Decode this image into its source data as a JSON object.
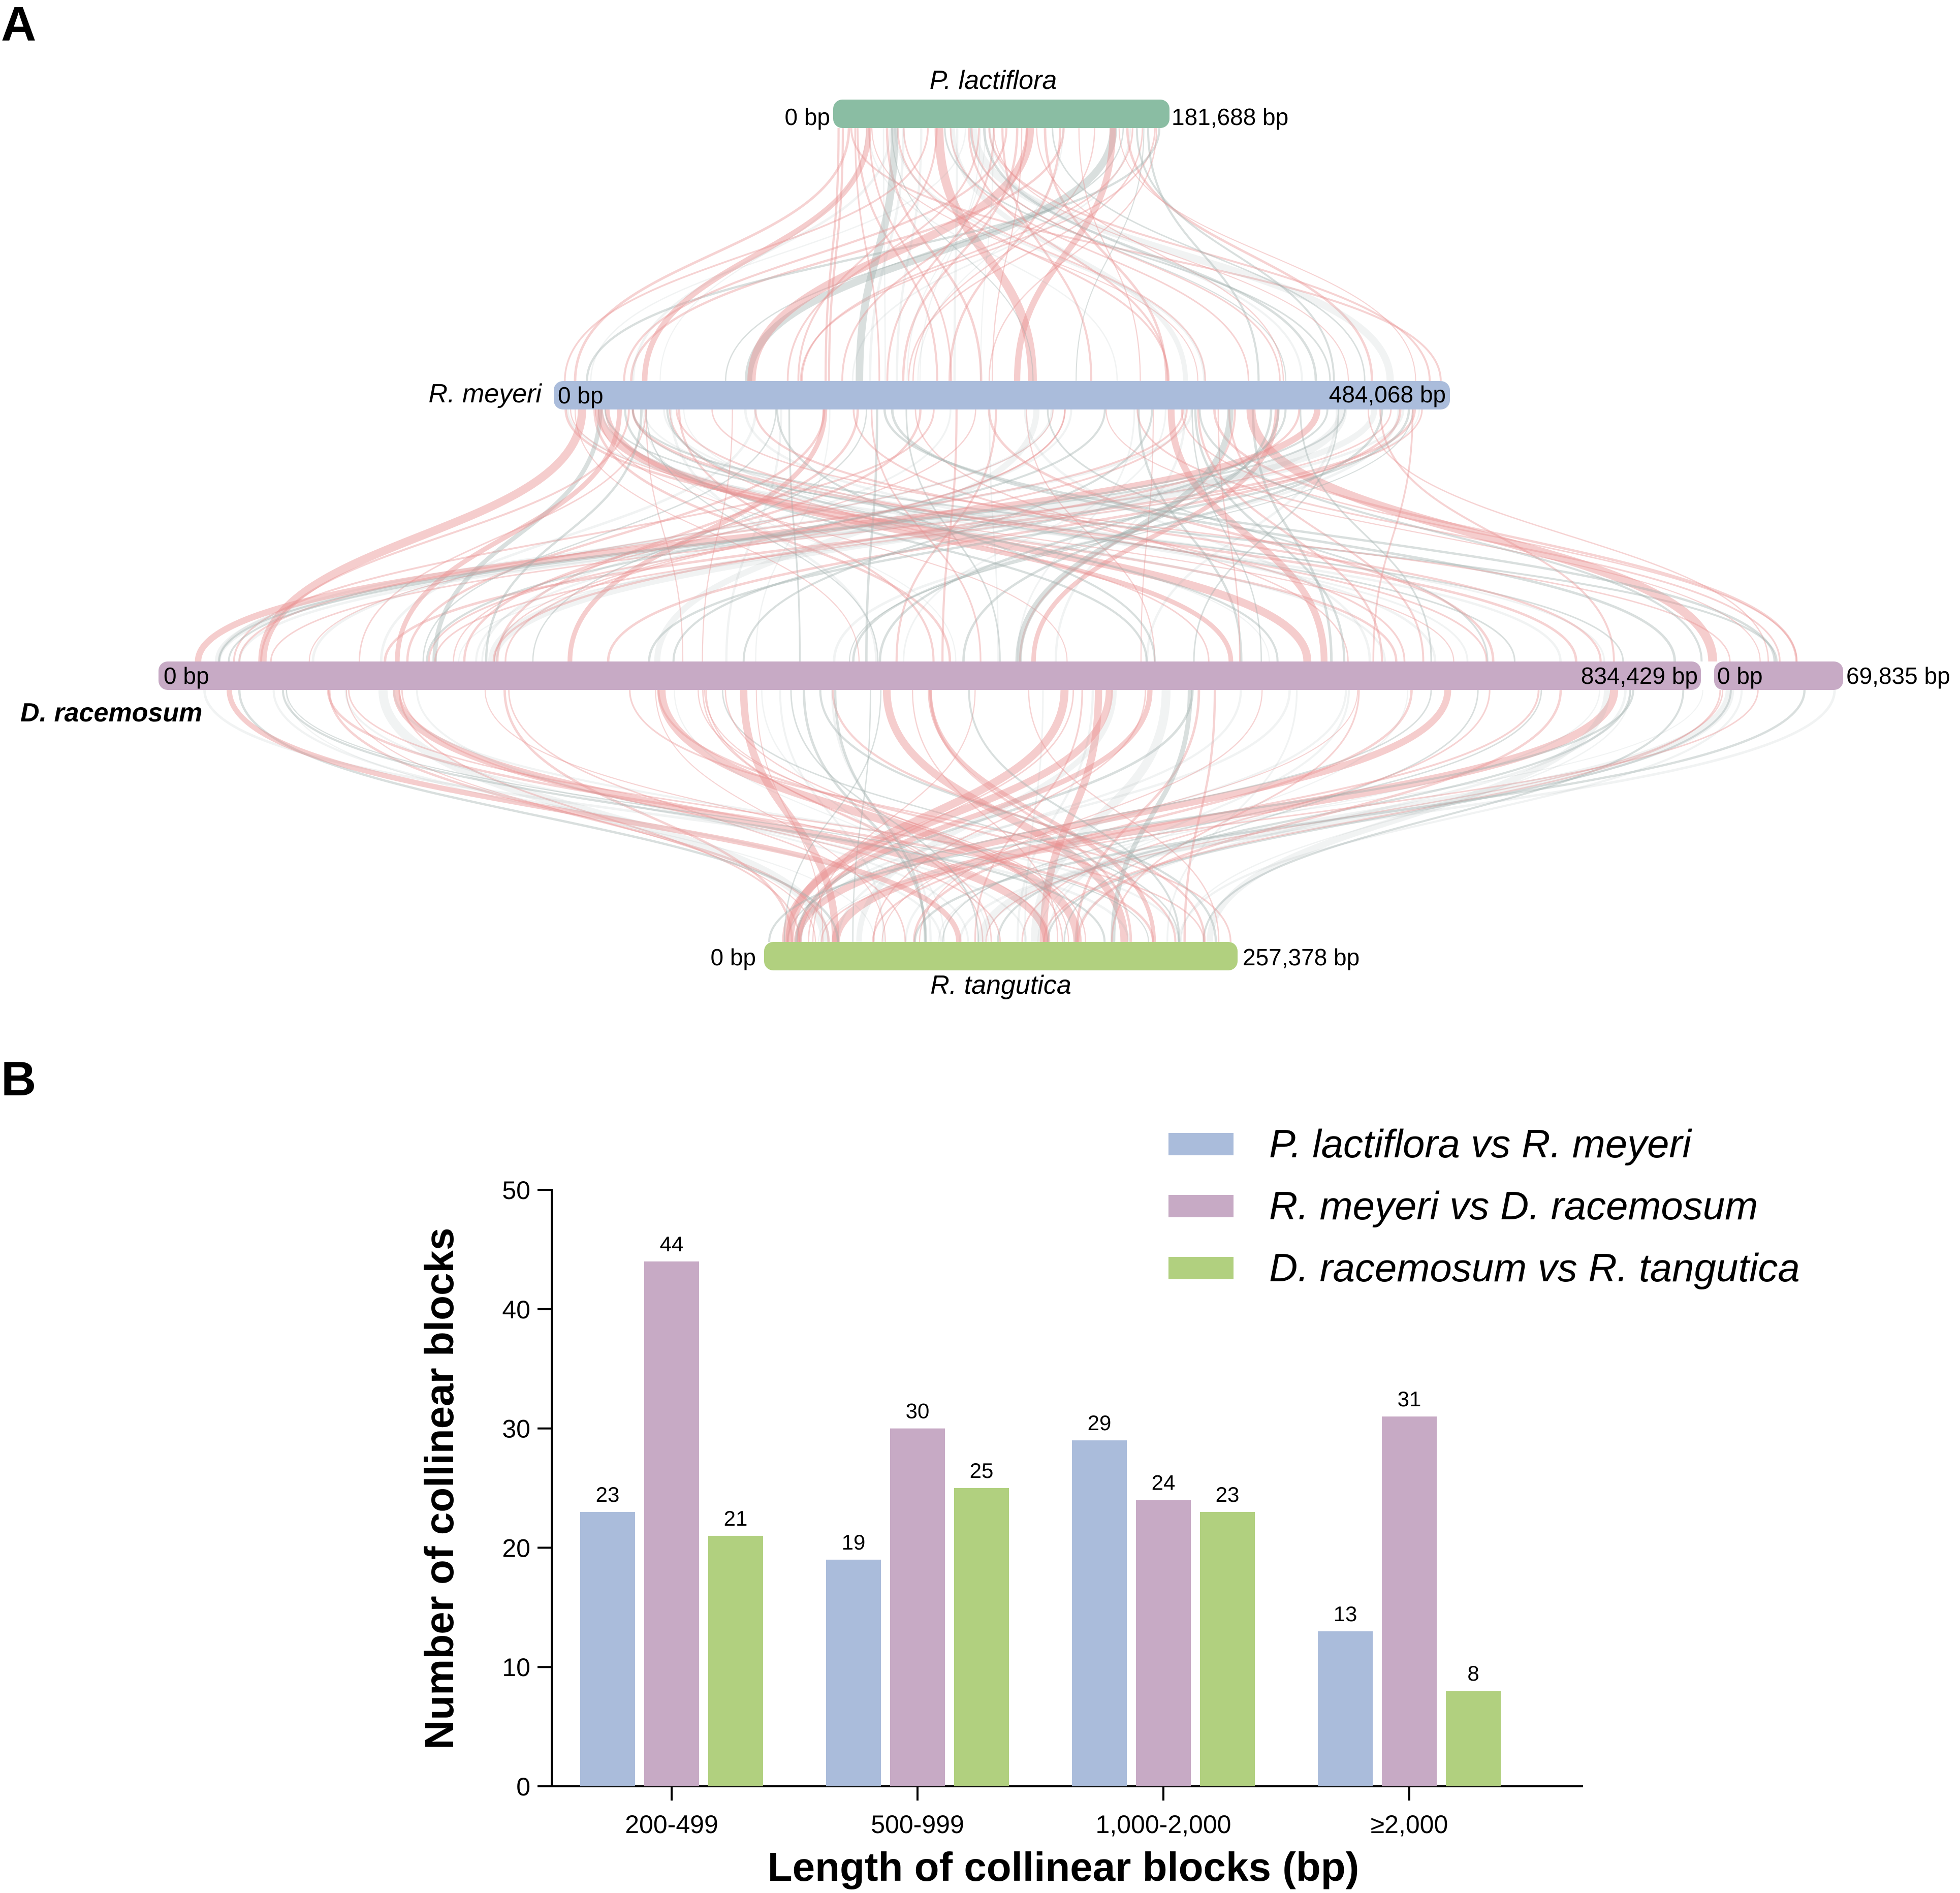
{
  "panel_a": {
    "label": "A",
    "genomes": [
      {
        "name": "P. lactiflora",
        "start": "0 bp",
        "end": "181,688 bp",
        "color": "#8abda3"
      },
      {
        "name": "R. meyeri",
        "start": "0 bp",
        "end": "484,068 bp",
        "color": "#aabcdb"
      },
      {
        "name": "D. racemosum",
        "start": "0 bp",
        "end": "834,429 bp",
        "start2": "0 bp",
        "end2": "69,835 bp",
        "color": "#c7aac5"
      },
      {
        "name": "R. tangutica",
        "start": "0 bp",
        "end": "257,378 bp",
        "color": "#b1d07f"
      }
    ],
    "link_colors": {
      "collinear": "#e89090",
      "other": "#9fb0ad"
    }
  },
  "panel_b": {
    "label": "B"
  },
  "chart_data": {
    "type": "bar",
    "title": "",
    "xlabel": "Length of collinear blocks (bp)",
    "ylabel": "Number of collinear blocks",
    "categories": [
      "200-499",
      "500-999",
      "1,000-2,000",
      "≥2,000"
    ],
    "ylim": [
      0,
      50
    ],
    "yticks": [
      0,
      10,
      20,
      30,
      40,
      50
    ],
    "legend_position": "top-right",
    "series": [
      {
        "name": "P. lactiflora vs R. meyeri",
        "color": "#aabcdb",
        "values": [
          23,
          19,
          29,
          13
        ]
      },
      {
        "name": "R. meyeri vs D. racemosum",
        "color": "#c7aac5",
        "values": [
          44,
          30,
          24,
          31
        ]
      },
      {
        "name": "D. racemosum vs R. tangutica",
        "color": "#b1d07f",
        "values": [
          21,
          25,
          23,
          8
        ]
      }
    ]
  }
}
